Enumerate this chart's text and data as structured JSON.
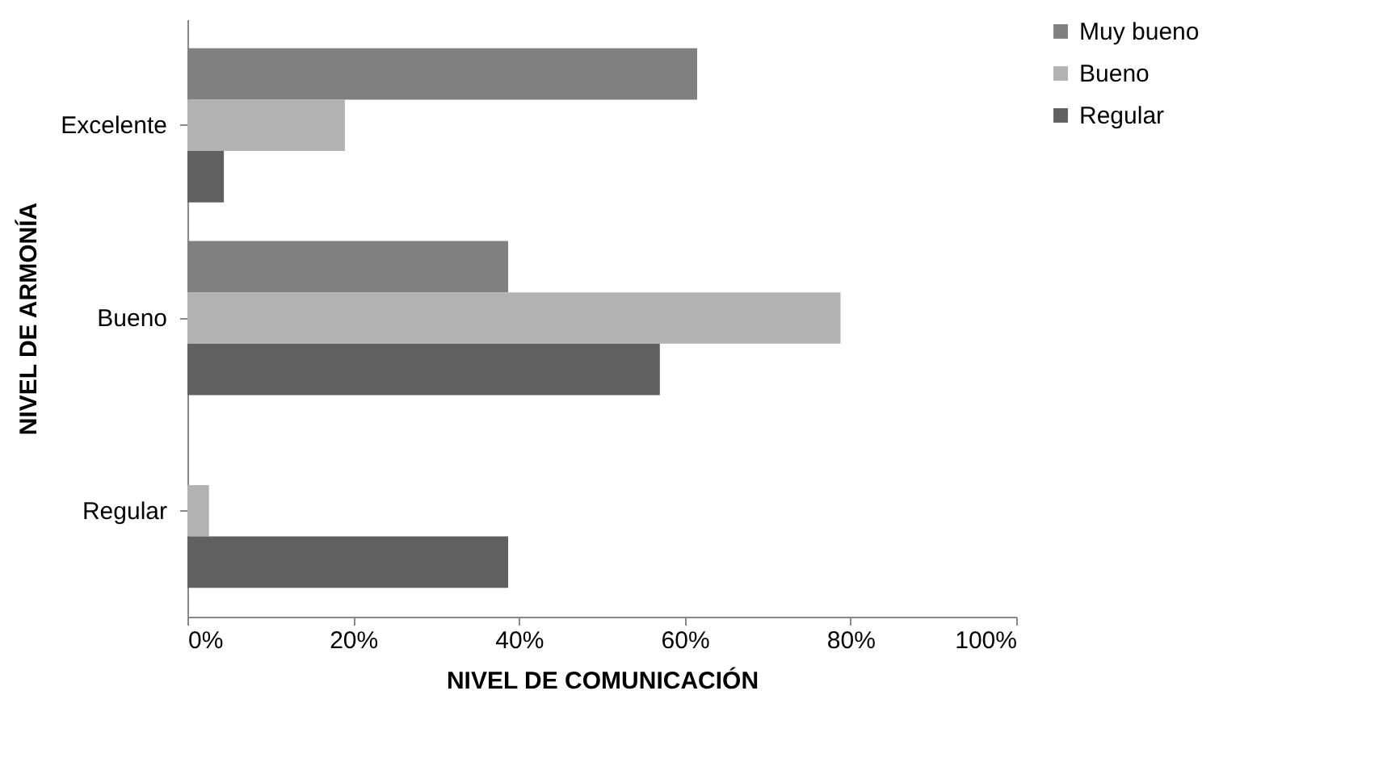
{
  "chart_data": {
    "type": "bar",
    "orientation": "horizontal",
    "xlabel": "NIVEL DE COMUNICACIÓN",
    "ylabel": "NIVEL DE ARMONÍA",
    "categories": [
      "Excelente",
      "Bueno",
      "Regular"
    ],
    "series": [
      {
        "name": "Muy bueno",
        "color": "#808080",
        "values": [
          61.5,
          38.7,
          0
        ]
      },
      {
        "name": "Bueno",
        "color": "#b2b2b2",
        "values": [
          19.0,
          78.8,
          2.6
        ]
      },
      {
        "name": "Regular",
        "color": "#606060",
        "values": [
          4.4,
          57.0,
          38.7
        ]
      }
    ],
    "xlim": [
      0,
      100
    ],
    "xticks": [
      {
        "value": 0,
        "label": "0%"
      },
      {
        "value": 20,
        "label": "20%"
      },
      {
        "value": 40,
        "label": "40%"
      },
      {
        "value": 60,
        "label": "60%"
      },
      {
        "value": 80,
        "label": "80%"
      },
      {
        "value": 100,
        "label": "100%"
      }
    ],
    "grid": false,
    "legend": "right"
  }
}
